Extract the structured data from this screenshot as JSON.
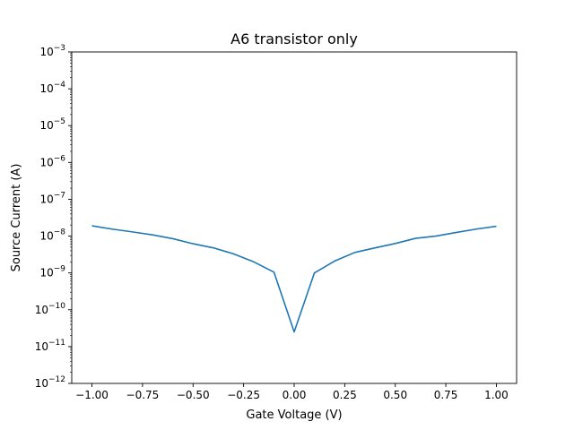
{
  "chart_data": {
    "type": "line",
    "title": "A6 transistor only",
    "xlabel": "Gate Voltage (V)",
    "ylabel": "Source Current (A)",
    "xlim": [
      -1.1,
      1.1
    ],
    "ylim": [
      1e-12,
      0.001
    ],
    "yscale": "log",
    "grid": false,
    "x_ticks": [
      -1.0,
      -0.75,
      -0.5,
      -0.25,
      0.0,
      0.25,
      0.5,
      0.75,
      1.0
    ],
    "x_tick_labels": [
      "−1.00",
      "−0.75",
      "−0.50",
      "−0.25",
      "0.00",
      "0.25",
      "0.50",
      "0.75",
      "1.00"
    ],
    "y_tick_exponents": [
      -12,
      -11,
      -10,
      -9,
      -8,
      -7,
      -6,
      -5,
      -4,
      -3
    ],
    "series": [
      {
        "color": "#1f77b4",
        "x": [
          -1.0,
          -0.9,
          -0.8,
          -0.7,
          -0.6,
          -0.5,
          -0.4,
          -0.3,
          -0.2,
          -0.1,
          0.0,
          0.1,
          0.2,
          0.3,
          0.4,
          0.5,
          0.6,
          0.7,
          0.8,
          0.9,
          1.0
        ],
        "y": [
          1.9e-08,
          1.55e-08,
          1.3e-08,
          1.08e-08,
          8.5e-09,
          6.2e-09,
          4.8e-09,
          3.3e-09,
          2e-09,
          1.05e-09,
          2.5e-11,
          1e-09,
          2.1e-09,
          3.6e-09,
          4.8e-09,
          6.3e-09,
          8.7e-09,
          1e-08,
          1.25e-08,
          1.55e-08,
          1.85e-08
        ]
      }
    ]
  }
}
